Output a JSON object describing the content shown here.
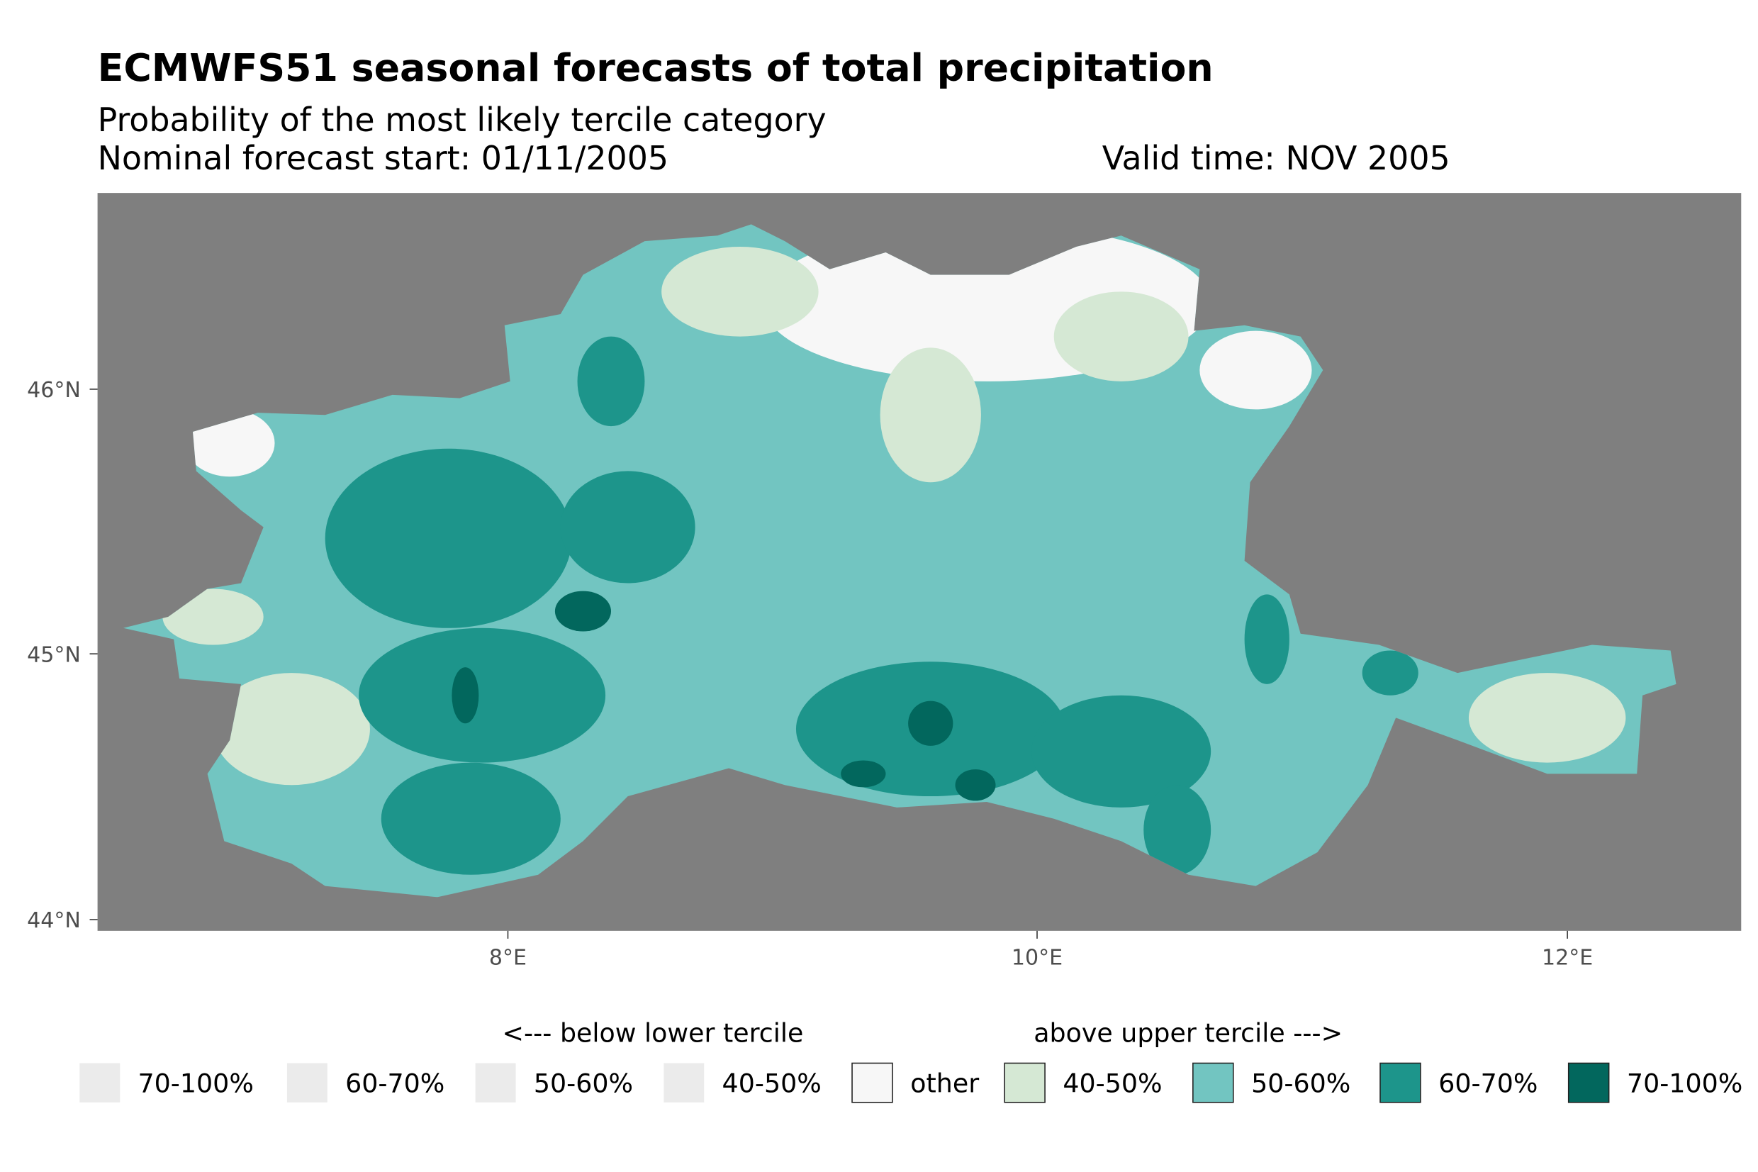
{
  "title": "ECMWFS51 seasonal forecasts of total precipitation",
  "subtitle": "Probability of the most likely tercile category",
  "forecast_start": "Nominal forecast start: 01/11/2005",
  "valid_time": "Valid time: NOV 2005",
  "axes": {
    "y_ticks": [
      "46°N",
      "45°N",
      "44°N"
    ],
    "x_ticks": [
      "8°E",
      "10°E",
      "12°E"
    ]
  },
  "legend": {
    "below_title": "<--- below lower tercile",
    "above_title": "above upper tercile --->",
    "items": [
      {
        "label": "70-100%",
        "color": "#ebebeb"
      },
      {
        "label": "60-70%",
        "color": "#ebebeb"
      },
      {
        "label": "50-60%",
        "color": "#ebebeb"
      },
      {
        "label": "40-50%",
        "color": "#ebebeb"
      },
      {
        "label": "other",
        "color": "#f7f7f7"
      },
      {
        "label": "40-50%",
        "color": "#d5e8d4"
      },
      {
        "label": "50-60%",
        "color": "#72c5c1"
      },
      {
        "label": "60-70%",
        "color": "#1d958b"
      },
      {
        "label": "70-100%",
        "color": "#02675d"
      }
    ]
  },
  "colors": {
    "panel": "#7f7f7f"
  }
}
